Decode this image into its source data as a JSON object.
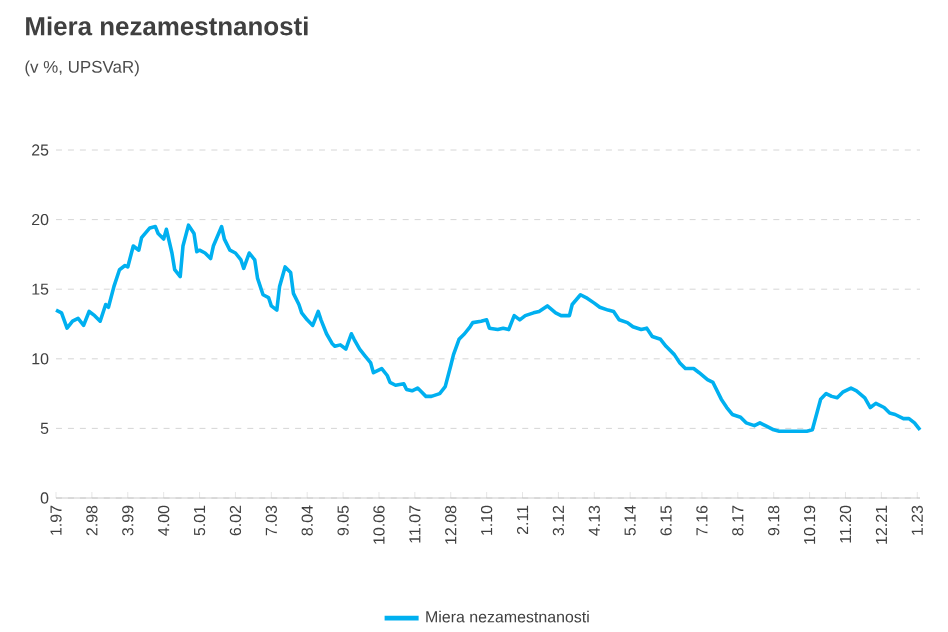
{
  "chart_data": {
    "type": "line",
    "title": "Miera nezamestnanosti",
    "subtitle": "(v %, UPSVaR)",
    "x": [
      "1997-01",
      "1997-03",
      "1997-05",
      "1997-07",
      "1997-09",
      "1997-11",
      "1998-01",
      "1998-03",
      "1998-05",
      "1998-07",
      "1998-08",
      "1998-10",
      "1998-12",
      "1999-02",
      "1999-03",
      "1999-05",
      "1999-07",
      "1999-08",
      "1999-11",
      "2000-01",
      "2000-02",
      "2000-04",
      "2000-05",
      "2000-07",
      "2000-08",
      "2000-10",
      "2000-11",
      "2001-01",
      "2001-03",
      "2001-04",
      "2001-05",
      "2001-07",
      "2001-09",
      "2001-10",
      "2002-01",
      "2002-02",
      "2002-04",
      "2002-06",
      "2002-08",
      "2002-09",
      "2002-11",
      "2003-01",
      "2003-02",
      "2003-04",
      "2003-06",
      "2003-07",
      "2003-09",
      "2003-10",
      "2003-12",
      "2004-02",
      "2004-03",
      "2004-05",
      "2004-06",
      "2004-08",
      "2004-10",
      "2004-12",
      "2005-01",
      "2005-03",
      "2005-05",
      "2005-06",
      "2005-08",
      "2005-10",
      "2005-12",
      "2006-01",
      "2006-03",
      "2006-05",
      "2006-07",
      "2006-08",
      "2006-11",
      "2007-01",
      "2007-02",
      "2007-04",
      "2007-07",
      "2007-08",
      "2007-10",
      "2007-12",
      "2008-01",
      "2008-03",
      "2008-05",
      "2008-08",
      "2008-10",
      "2008-12",
      "2009-01",
      "2009-03",
      "2009-05",
      "2009-07",
      "2009-08",
      "2009-11",
      "2010-01",
      "2010-02",
      "2010-05",
      "2010-07",
      "2010-09",
      "2010-11",
      "2011-01",
      "2011-03",
      "2011-06",
      "2011-08",
      "2011-11",
      "2012-02",
      "2012-04",
      "2012-07",
      "2012-08",
      "2012-11",
      "2013-01",
      "2013-04",
      "2013-06",
      "2013-09",
      "2013-11",
      "2014-01",
      "2014-04",
      "2014-06",
      "2014-09",
      "2014-11",
      "2015-01",
      "2015-04",
      "2015-06",
      "2015-09",
      "2015-11",
      "2016-01",
      "2016-04",
      "2016-06",
      "2016-09",
      "2016-11",
      "2017-02",
      "2017-04",
      "2017-06",
      "2017-09",
      "2017-11",
      "2018-02",
      "2018-04",
      "2018-06",
      "2018-09",
      "2018-11",
      "2019-02",
      "2019-04",
      "2019-07",
      "2019-09",
      "2019-11",
      "2020-02",
      "2020-04",
      "2020-06",
      "2020-08",
      "2020-10",
      "2021-01",
      "2021-03",
      "2021-06",
      "2021-08",
      "2021-10",
      "2022-01",
      "2022-03",
      "2022-05",
      "2022-08",
      "2022-10",
      "2022-12",
      "2023-02"
    ],
    "series": [
      {
        "name": "Miera nezamestnanosti",
        "color": "#00b0f0",
        "values": [
          13.5,
          13.3,
          12.2,
          12.7,
          12.9,
          12.4,
          13.4,
          13.1,
          12.7,
          13.9,
          13.7,
          15.2,
          16.4,
          16.7,
          16.6,
          18.1,
          17.8,
          18.7,
          19.4,
          19.5,
          19.0,
          18.6,
          19.3,
          17.6,
          16.4,
          15.9,
          18.1,
          19.6,
          19.0,
          17.7,
          17.8,
          17.6,
          17.2,
          18.1,
          19.5,
          18.6,
          17.8,
          17.6,
          17.1,
          16.5,
          17.6,
          17.1,
          15.8,
          14.6,
          14.4,
          13.8,
          13.5,
          15.2,
          16.6,
          16.2,
          14.7,
          13.9,
          13.3,
          12.8,
          12.4,
          13.4,
          12.8,
          11.8,
          11.1,
          10.9,
          11.0,
          10.7,
          11.8,
          11.4,
          10.7,
          10.2,
          9.7,
          9.0,
          9.3,
          8.8,
          8.3,
          8.1,
          8.2,
          7.8,
          7.7,
          7.9,
          7.7,
          7.3,
          7.3,
          7.5,
          8.0,
          9.5,
          10.3,
          11.4,
          11.8,
          12.3,
          12.6,
          12.7,
          12.8,
          12.2,
          12.1,
          12.2,
          12.1,
          13.1,
          12.8,
          13.1,
          13.3,
          13.4,
          13.8,
          13.3,
          13.1,
          13.1,
          13.9,
          14.6,
          14.4,
          14.0,
          13.7,
          13.5,
          13.4,
          12.8,
          12.6,
          12.3,
          12.1,
          12.2,
          11.6,
          11.4,
          10.9,
          10.3,
          9.7,
          9.3,
          9.3,
          9.0,
          8.5,
          8.3,
          7.1,
          6.5,
          6.0,
          5.8,
          5.4,
          5.2,
          5.4,
          5.2,
          4.9,
          4.8,
          4.8,
          4.8,
          4.8,
          4.8,
          4.9,
          7.1,
          7.5,
          7.3,
          7.2,
          7.6,
          7.9,
          7.7,
          7.2,
          6.5,
          6.8,
          6.5,
          6.1,
          6.0,
          5.7,
          5.7,
          5.4,
          4.9
        ]
      }
    ],
    "xlim": [
      "1997-01",
      "2023-02"
    ],
    "xticks": [
      {
        "value": "1997-01",
        "label": "1.97"
      },
      {
        "value": "1998-02",
        "label": "2.98"
      },
      {
        "value": "1999-03",
        "label": "3.99"
      },
      {
        "value": "2000-04",
        "label": "4.00"
      },
      {
        "value": "2001-05",
        "label": "5.01"
      },
      {
        "value": "2002-06",
        "label": "6.02"
      },
      {
        "value": "2003-07",
        "label": "7.03"
      },
      {
        "value": "2004-08",
        "label": "8.04"
      },
      {
        "value": "2005-09",
        "label": "9.05"
      },
      {
        "value": "2006-10",
        "label": "10.06"
      },
      {
        "value": "2007-11",
        "label": "11.07"
      },
      {
        "value": "2008-12",
        "label": "12.08"
      },
      {
        "value": "2010-01",
        "label": "1.10"
      },
      {
        "value": "2011-02",
        "label": "2.11"
      },
      {
        "value": "2012-03",
        "label": "3.12"
      },
      {
        "value": "2013-04",
        "label": "4.13"
      },
      {
        "value": "2014-05",
        "label": "5.14"
      },
      {
        "value": "2015-06",
        "label": "6.15"
      },
      {
        "value": "2016-07",
        "label": "7.16"
      },
      {
        "value": "2017-08",
        "label": "8.17"
      },
      {
        "value": "2018-09",
        "label": "9.18"
      },
      {
        "value": "2019-10",
        "label": "10.19"
      },
      {
        "value": "2020-11",
        "label": "11.20"
      },
      {
        "value": "2021-12",
        "label": "12.21"
      },
      {
        "value": "2023-01",
        "label": "1.23"
      }
    ],
    "ylim": [
      0,
      25
    ],
    "yticks": [
      0,
      5,
      10,
      15,
      20,
      25
    ],
    "grid": "y",
    "legend": "bottom",
    "marker": "none",
    "line_style": "solid"
  }
}
